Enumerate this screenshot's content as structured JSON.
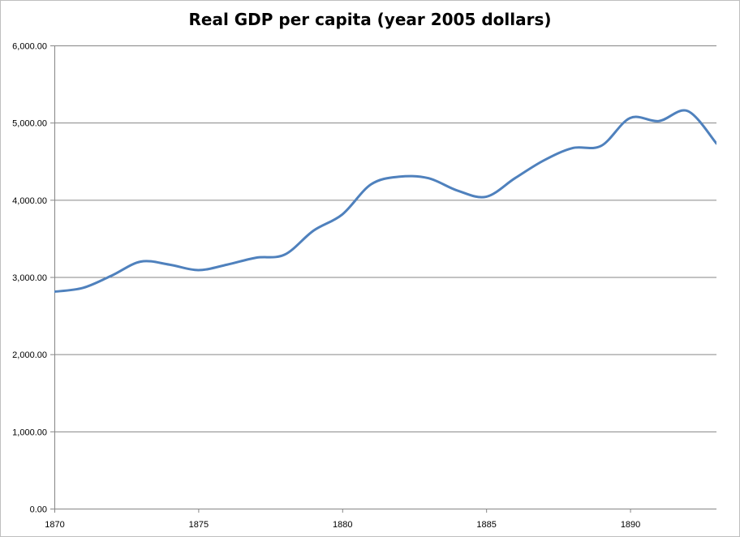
{
  "chart_data": {
    "type": "line",
    "title": "Real GDP per capita (year 2005 dollars)",
    "xlabel": "",
    "ylabel": "",
    "xlim": [
      1870,
      1893
    ],
    "ylim": [
      0,
      6000
    ],
    "x_ticks": [
      1870,
      1875,
      1880,
      1885,
      1890
    ],
    "x_tick_labels": [
      "1870",
      "1875",
      "1880",
      "1885",
      "1890"
    ],
    "y_ticks": [
      0,
      1000,
      2000,
      3000,
      4000,
      5000,
      6000
    ],
    "y_tick_labels": [
      "0.00",
      "1,000.00",
      "2,000.00",
      "3,000.00",
      "4,000.00",
      "5,000.00",
      "6,000.00"
    ],
    "grid": "horizontal",
    "legend": "none",
    "series": [
      {
        "name": "Real GDP per capita",
        "color": "#4f81bd",
        "x": [
          1870,
          1871,
          1872,
          1873,
          1874,
          1875,
          1876,
          1877,
          1878,
          1879,
          1880,
          1881,
          1882,
          1883,
          1884,
          1885,
          1886,
          1887,
          1888,
          1889,
          1890,
          1891,
          1892,
          1893
        ],
        "values": [
          2810,
          2860,
          3020,
          3200,
          3160,
          3090,
          3160,
          3250,
          3290,
          3600,
          3810,
          4200,
          4300,
          4280,
          4120,
          4040,
          4280,
          4510,
          4670,
          4700,
          5060,
          5020,
          5150,
          4730
        ]
      }
    ]
  },
  "colors": {
    "gridline": "#868686",
    "axis": "#868686",
    "frame": "#bfbfbf"
  }
}
